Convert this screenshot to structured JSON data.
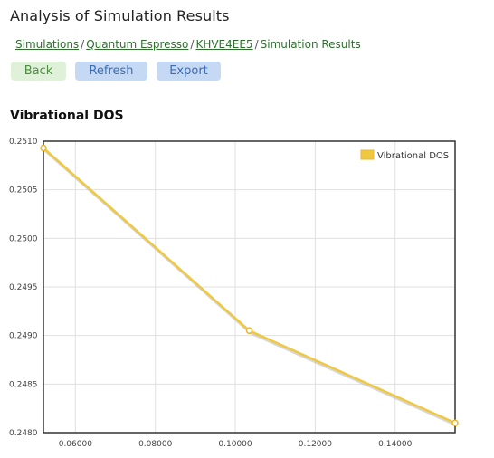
{
  "page": {
    "title": "Analysis of Simulation Results"
  },
  "breadcrumb": {
    "items": [
      "Simulations",
      "Quantum Espresso",
      "KHVE4EE5"
    ],
    "current": "Simulation Results",
    "separator": "/"
  },
  "toolbar": {
    "back_label": "Back",
    "refresh_label": "Refresh",
    "export_label": "Export"
  },
  "section": {
    "title": "Vibrational DOS"
  },
  "colors": {
    "series": "#f0c840",
    "series_stroke": "#e8b830",
    "shadow": "#bbbbbb",
    "grid": "#e0e0e0",
    "axis": "#333333",
    "link": "#2e6f2e"
  },
  "chart_data": {
    "type": "line",
    "title": "",
    "xlabel": "",
    "ylabel": "",
    "xlim": [
      0.052,
      0.155
    ],
    "ylim": [
      0.248,
      0.251
    ],
    "x_ticks": [
      0.06,
      0.08,
      0.1,
      0.12,
      0.14
    ],
    "x_tick_labels": [
      "0.06000",
      "0.08000",
      "0.10000",
      "0.12000",
      "0.14000"
    ],
    "y_ticks": [
      0.248,
      0.2485,
      0.249,
      0.2495,
      0.25,
      0.2505,
      0.251
    ],
    "y_tick_labels": [
      "0.2480",
      "0.2485",
      "0.2490",
      "0.2495",
      "0.2500",
      "0.2505",
      "0.2510"
    ],
    "grid": true,
    "legend_position": "top-right",
    "series": [
      {
        "name": "Vibrational DOS",
        "x": [
          0.052,
          0.1035,
          0.155
        ],
        "y": [
          0.25093,
          0.24905,
          0.2481
        ]
      }
    ]
  }
}
